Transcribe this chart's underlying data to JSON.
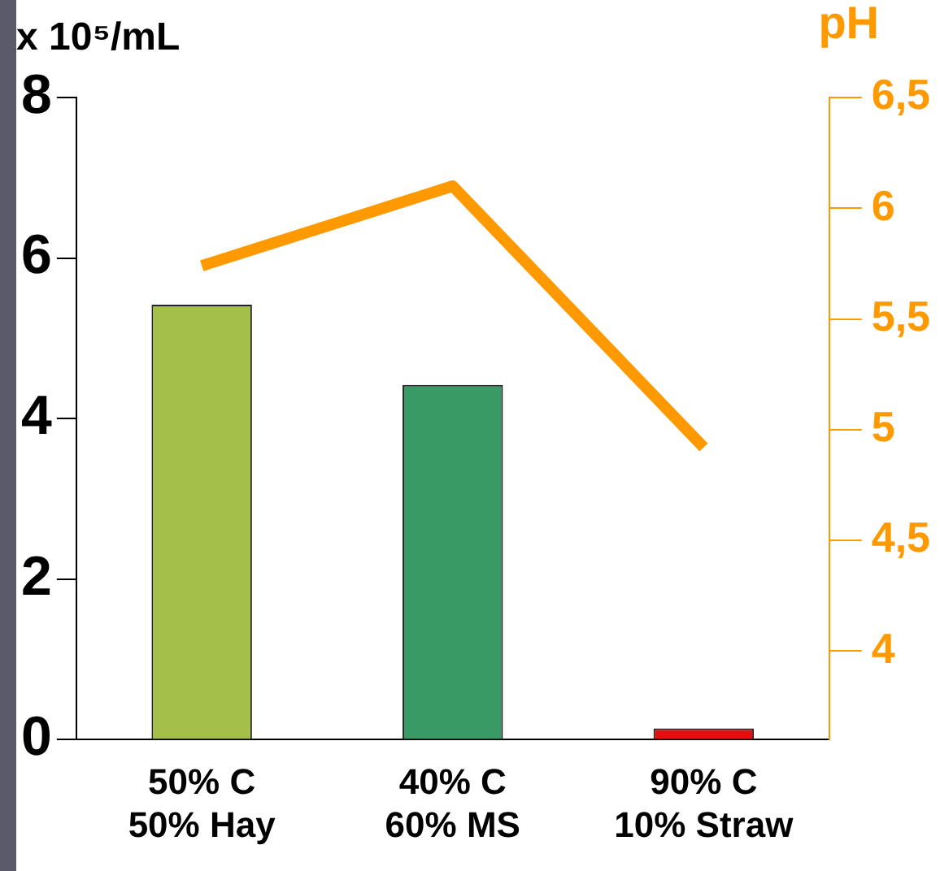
{
  "chart_data": {
    "type": "bar",
    "categories": [
      "50% C\n50% Hay",
      "40% C\n60% MS",
      "90% C\n10% Straw"
    ],
    "ylabel": "x 10⁵/mL",
    "y2label": "pH",
    "series": [
      {
        "colors": [
          "#a5c04a",
          "#3a9a66",
          "#e01010"
        ],
        "values": [
          5.42,
          4.42,
          0.14
        ]
      },
      {
        "type": "line",
        "axis": "y2",
        "color": "#ff9900",
        "values": [
          5.74,
          6.1,
          4.92
        ]
      }
    ],
    "ylim": [
      0,
      8
    ],
    "yticks": [
      0,
      2,
      4,
      6,
      8
    ],
    "y2lim": [
      3.6,
      6.5
    ],
    "y2ticks": [
      {
        "value": 4,
        "label": "4"
      },
      {
        "value": 4.5,
        "label": "4,5"
      },
      {
        "value": 5,
        "label": "5"
      },
      {
        "value": 5.5,
        "label": "5,5"
      },
      {
        "value": 6,
        "label": "6"
      },
      {
        "value": 6.5,
        "label": "6,5"
      }
    ],
    "grid": false,
    "legend": false,
    "marker": "none",
    "line_style": "solid"
  }
}
